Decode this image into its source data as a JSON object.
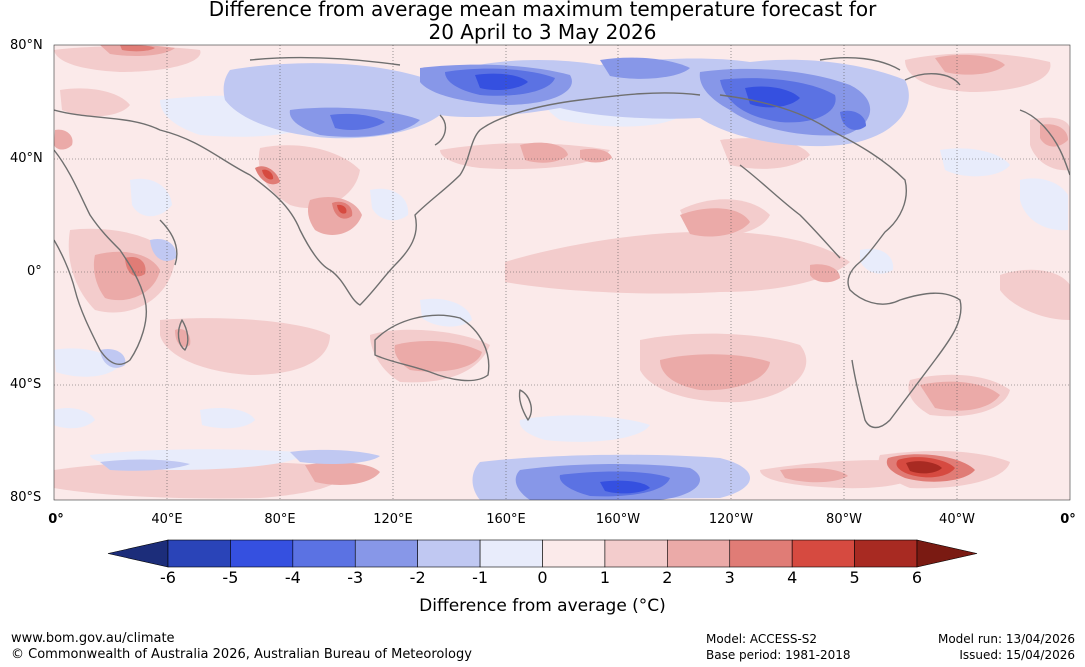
{
  "title_line1": "Difference from average mean maximum temperature forecast for",
  "title_line2": "20 April to 3 May 2026",
  "lat_labels": [
    "80°N",
    "40°N",
    "0°",
    "40°S",
    "80°S"
  ],
  "lon_labels": [
    "0°",
    "40°E",
    "80°E",
    "120°E",
    "160°E",
    "160°W",
    "120°W",
    "80°W",
    "40°W",
    "0°"
  ],
  "colorbar": {
    "ticks": [
      "-6",
      "-5",
      "-4",
      "-3",
      "-2",
      "-1",
      "0",
      "1",
      "2",
      "3",
      "4",
      "5",
      "6"
    ],
    "colors": [
      "#1c2d7a",
      "#2a44b8",
      "#3550e0",
      "#5b72e3",
      "#8797e8",
      "#c0c8f2",
      "#e8ecfb",
      "#fbeaea",
      "#f3cccc",
      "#ebaaa8",
      "#e07c76",
      "#d64a40",
      "#a82a22",
      "#7a1a12"
    ],
    "label": "Difference from average (°C)"
  },
  "footer": {
    "website": "www.bom.gov.au/climate",
    "copyright": "© Commonwealth of Australia 2026, Australian Bureau of Meteorology",
    "model": "Model: ACCESS-S2",
    "base_period": "Base period: 1981-2018",
    "model_run": "Model run: 13/04/2026",
    "issued": "Issued: 15/04/2026"
  }
}
